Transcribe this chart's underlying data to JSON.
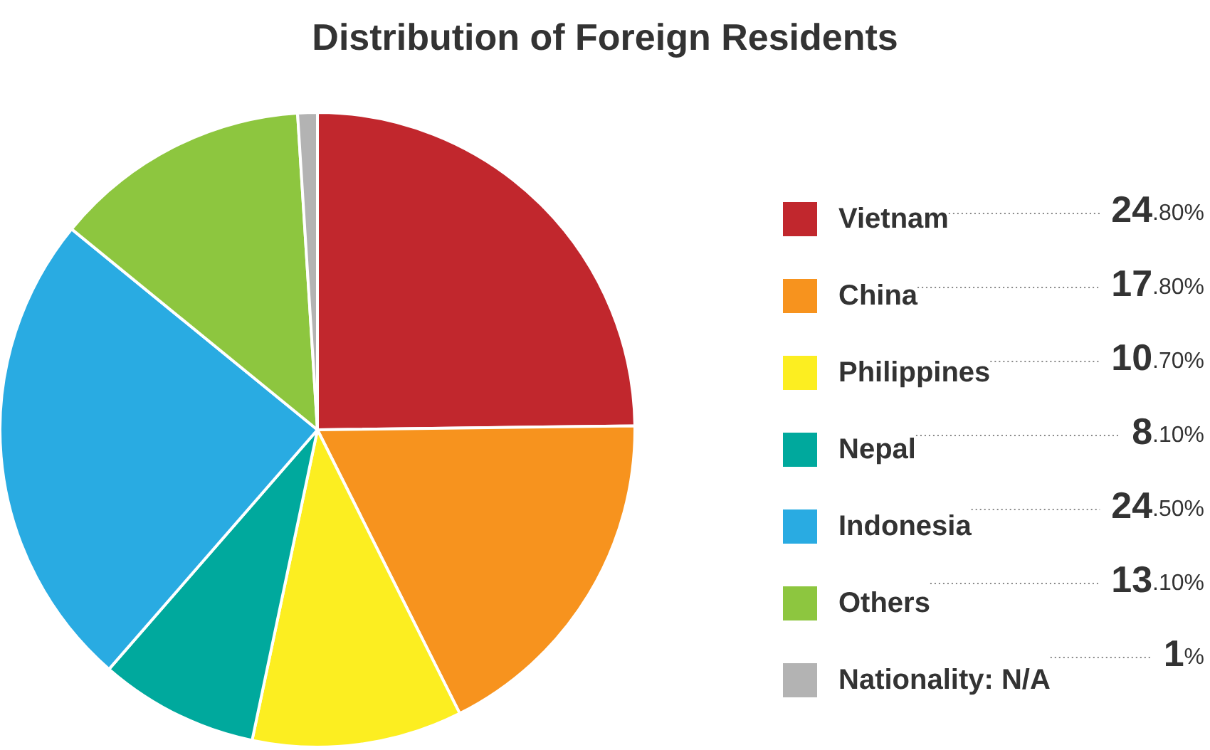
{
  "chart_data": {
    "type": "pie",
    "title": "Distribution of Foreign Residents",
    "categories": [
      "Vietnam",
      "China",
      "Philippines",
      "Nepal",
      "Indonesia",
      "Others",
      "Nationality: N/A"
    ],
    "values": [
      24.8,
      17.8,
      10.7,
      8.1,
      24.5,
      13.1,
      1
    ],
    "value_labels": [
      "24.80%",
      "17.80%",
      "10.70%",
      "8.10%",
      "24.50%",
      "13.10%",
      "1%"
    ],
    "colors": [
      "#c1272d",
      "#f7931e",
      "#fcee21",
      "#00a99d",
      "#29abe2",
      "#8dc63f",
      "#b3b3b3"
    ],
    "legend": "right"
  }
}
